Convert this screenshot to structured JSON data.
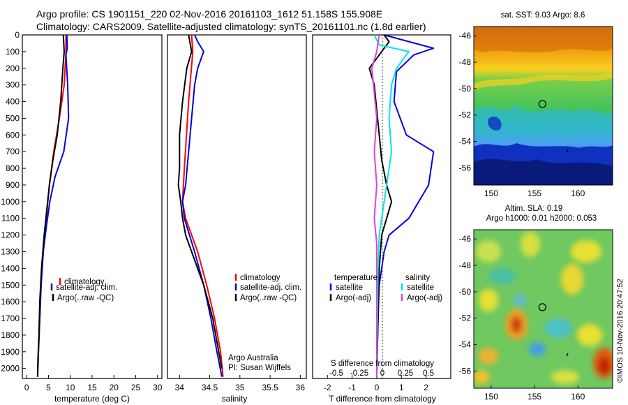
{
  "title": {
    "line1": "Argo profile: CS 1901151_220 02-Nov-2016 20161103_1612 51.158S 155.908E",
    "line2": "Climatology: CARS2009. Satellite-adjusted climatology: synTS_20161101.nc (1.8d earlier)"
  },
  "colors": {
    "climatology": "#ff0000",
    "satellite": "#0000dd",
    "argo": "#000000",
    "salinity_satellite": "#00e5e5",
    "salinity_argo": "#e040e0"
  },
  "chart_data": [
    {
      "type": "line",
      "id": "temperature",
      "xlabel": "temperature (deg C)",
      "xlim": [
        -1,
        31
      ],
      "ylim": [
        2060,
        0
      ],
      "xticks": [
        "0",
        "5",
        "10",
        "15",
        "20",
        "25",
        "30"
      ],
      "yticks": [
        "0",
        "100",
        "200",
        "300",
        "400",
        "500",
        "600",
        "700",
        "800",
        "900",
        "1000",
        "1100",
        "1200",
        "1300",
        "1400",
        "1500",
        "1600",
        "1700",
        "1800",
        "1900",
        "2000"
      ],
      "legend": [
        "climatology",
        "satellite-adj. clim.",
        "Argo(..raw -QC)"
      ],
      "series": [
        {
          "name": "climatology",
          "color": "#ff0000",
          "points": [
            [
              9.0,
              0
            ],
            [
              9.0,
              100
            ],
            [
              8.6,
              300
            ],
            [
              7.5,
              500
            ],
            [
              6.2,
              700
            ],
            [
              5.2,
              900
            ],
            [
              4.5,
              1100
            ],
            [
              3.8,
              1300
            ],
            [
              3.3,
              1500
            ],
            [
              3.0,
              1700
            ],
            [
              2.7,
              1900
            ],
            [
              2.5,
              2050
            ]
          ]
        },
        {
          "name": "satellite-adj. clim.",
          "color": "#0000dd",
          "points": [
            [
              9.2,
              0
            ],
            [
              9.3,
              80
            ],
            [
              9.0,
              120
            ],
            [
              9.4,
              300
            ],
            [
              9.6,
              500
            ],
            [
              8.5,
              700
            ],
            [
              6.5,
              850
            ],
            [
              5.3,
              1000
            ],
            [
              4.5,
              1150
            ],
            [
              3.8,
              1300
            ],
            [
              3.3,
              1500
            ],
            [
              3.0,
              1700
            ],
            [
              2.7,
              1900
            ],
            [
              2.5,
              2050
            ]
          ]
        },
        {
          "name": "Argo(..raw -QC)",
          "color": "#000000",
          "points": [
            [
              8.4,
              0
            ],
            [
              8.6,
              100
            ],
            [
              8.3,
              200
            ],
            [
              7.8,
              400
            ],
            [
              7.0,
              600
            ],
            [
              6.0,
              750
            ],
            [
              5.2,
              900
            ],
            [
              4.6,
              1050
            ],
            [
              4.0,
              1200
            ],
            [
              3.4,
              1400
            ],
            [
              3.0,
              1600
            ],
            [
              2.8,
              1800
            ],
            [
              2.5,
              2000
            ],
            [
              2.5,
              2050
            ]
          ]
        }
      ]
    },
    {
      "type": "line",
      "id": "salinity",
      "xlabel": "salinity",
      "xlim": [
        33.8,
        36.1
      ],
      "ylim": [
        2060,
        0
      ],
      "xticks": [
        "34",
        "34.5",
        "35",
        "35.5",
        "36"
      ],
      "legend": [
        "climatology",
        "satellite-adj. clim.",
        "Argo(..raw -QC)"
      ],
      "annotation": [
        "Argo Australia",
        "PI: Susan Wijffels"
      ],
      "series": [
        {
          "name": "climatology",
          "color": "#ff0000",
          "points": [
            [
              34.2,
              0
            ],
            [
              34.22,
              100
            ],
            [
              34.15,
              400
            ],
            [
              34.08,
              800
            ],
            [
              34.05,
              1000
            ],
            [
              34.1,
              1100
            ],
            [
              34.3,
              1300
            ],
            [
              34.45,
              1500
            ],
            [
              34.58,
              1700
            ],
            [
              34.68,
              1900
            ],
            [
              34.72,
              2050
            ]
          ]
        },
        {
          "name": "satellite-adj. clim.",
          "color": "#0000dd",
          "points": [
            [
              34.25,
              0
            ],
            [
              34.3,
              40
            ],
            [
              34.4,
              100
            ],
            [
              34.3,
              200
            ],
            [
              34.25,
              300
            ],
            [
              34.2,
              500
            ],
            [
              34.15,
              700
            ],
            [
              34.1,
              900
            ],
            [
              34.05,
              1000
            ],
            [
              34.08,
              1100
            ],
            [
              34.25,
              1300
            ],
            [
              34.4,
              1500
            ],
            [
              34.52,
              1700
            ],
            [
              34.62,
              1900
            ],
            [
              34.7,
              2050
            ]
          ]
        },
        {
          "name": "Argo(..raw -QC)",
          "color": "#000000",
          "points": [
            [
              34.15,
              0
            ],
            [
              34.2,
              100
            ],
            [
              34.12,
              200
            ],
            [
              34.05,
              400
            ],
            [
              34.0,
              600
            ],
            [
              34.0,
              800
            ],
            [
              33.98,
              900
            ],
            [
              34.02,
              1000
            ],
            [
              34.05,
              1100
            ],
            [
              34.1,
              1200
            ],
            [
              34.25,
              1350
            ],
            [
              34.4,
              1500
            ],
            [
              34.55,
              1700
            ],
            [
              34.65,
              1900
            ],
            [
              34.7,
              2000
            ]
          ]
        }
      ]
    },
    {
      "type": "line",
      "id": "difference",
      "xlabel": "T difference from climatology",
      "xlabel_top": "S difference from climatology",
      "xlim": [
        -2.6,
        3.0
      ],
      "ylim": [
        2060,
        0
      ],
      "xticks": [
        "-2",
        "-1",
        "0",
        "1",
        "2"
      ],
      "xticks_top": [
        "-0.5",
        "-0.25",
        "0",
        "0.25",
        "0.5"
      ],
      "legend_headers": [
        "temperature",
        "salinity"
      ],
      "legend": [
        "satellite",
        "Argo(-adj)",
        "satellite",
        "Argo(-adj)"
      ],
      "series": [
        {
          "name": "temperature satellite",
          "color": "#0000dd",
          "points": [
            [
              0.3,
              0
            ],
            [
              1.3,
              40
            ],
            [
              2.3,
              80
            ],
            [
              1.5,
              120
            ],
            [
              0.8,
              220
            ],
            [
              0.7,
              400
            ],
            [
              1.2,
              600
            ],
            [
              2.3,
              700
            ],
            [
              2.1,
              900
            ],
            [
              1.3,
              1100
            ],
            [
              0.5,
              1200
            ],
            [
              0.3,
              1300
            ],
            [
              0.1,
              1500
            ],
            [
              0.05,
              1700
            ],
            [
              0,
              2050
            ]
          ]
        },
        {
          "name": "temperature Argo(-adj)",
          "color": "#000000",
          "points": [
            [
              0.3,
              0
            ],
            [
              0.5,
              40
            ],
            [
              0.2,
              100
            ],
            [
              -0.3,
              200
            ],
            [
              -0.1,
              300
            ],
            [
              0.0,
              450
            ],
            [
              0.1,
              600
            ],
            [
              0.2,
              750
            ],
            [
              0.4,
              900
            ],
            [
              0.6,
              1000
            ],
            [
              0.4,
              1100
            ],
            [
              0.2,
              1200
            ],
            [
              0.1,
              1400
            ],
            [
              0,
              2050
            ]
          ]
        },
        {
          "name": "salinity satellite",
          "color": "#00e5e5",
          "points": [
            [
              -0.1,
              0
            ],
            [
              0.1,
              60
            ],
            [
              1.3,
              100
            ],
            [
              0.8,
              200
            ],
            [
              0.6,
              300
            ],
            [
              0.5,
              500
            ],
            [
              0.6,
              700
            ],
            [
              0.4,
              900
            ],
            [
              0.2,
              1100
            ],
            [
              0.1,
              1200
            ],
            [
              0.05,
              1400
            ],
            [
              0,
              2050
            ]
          ]
        },
        {
          "name": "salinity Argo(-adj)",
          "color": "#e040e0",
          "points": [
            [
              0.1,
              0
            ],
            [
              0.0,
              100
            ],
            [
              -0.2,
              200
            ],
            [
              -0.1,
              350
            ],
            [
              0.0,
              500
            ],
            [
              -0.1,
              700
            ],
            [
              0.0,
              900
            ],
            [
              -0.1,
              1100
            ],
            [
              0.0,
              1250
            ],
            [
              0,
              2050
            ]
          ]
        }
      ]
    },
    {
      "type": "heatmap",
      "id": "sst-map",
      "title": "sat. SST: 9.03 Argo: 8.6",
      "xlim": [
        148,
        164
      ],
      "ylim": [
        -57.3,
        -45.3
      ],
      "xticks": [
        "150",
        "155",
        "160"
      ],
      "yticks": [
        "-46",
        "-48",
        "-50",
        "-52",
        "-54",
        "-56"
      ],
      "marker": {
        "lon": 155.9,
        "lat": -51.16
      }
    },
    {
      "type": "heatmap",
      "id": "sla-map",
      "title_line1": "Altim. SLA: 0.19",
      "title_line2": "Argo h1000: 0.01 h2000: 0.053",
      "xlim": [
        148,
        164
      ],
      "ylim": [
        -57.3,
        -45.3
      ],
      "xticks": [
        "150",
        "155",
        "160"
      ],
      "yticks": [
        "-46",
        "-48",
        "-50",
        "-52",
        "-54",
        "-56"
      ],
      "marker": {
        "lon": 155.9,
        "lat": -51.16
      }
    }
  ],
  "credit": "©IMOS 10-Nov-2016 20:47:52"
}
